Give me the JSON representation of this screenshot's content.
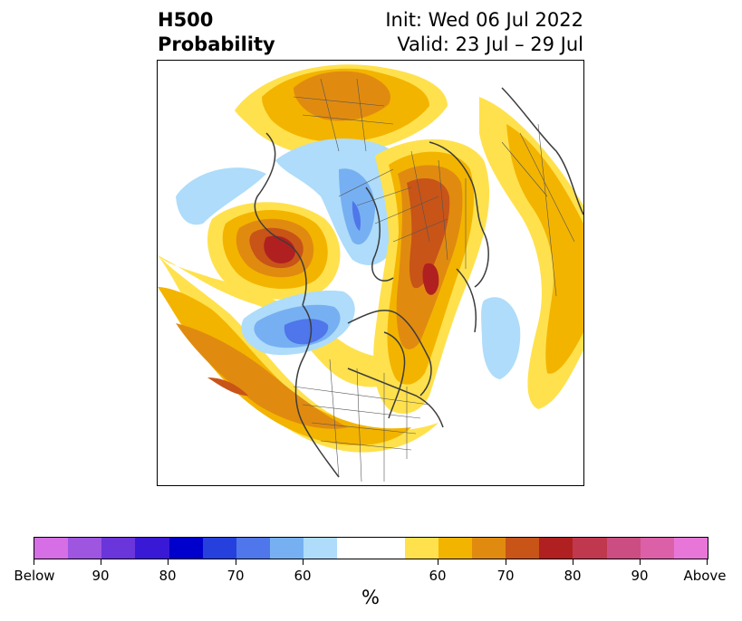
{
  "header": {
    "title_line1": "H500",
    "title_line2": "Probability",
    "init": "Init: Wed 06 Jul 2022",
    "valid": "Valid: 23 Jul – 29 Jul"
  },
  "map": {
    "projection": "north-polar-stereographic",
    "coastline_color": "#3c3c3c",
    "border_color": "#555555"
  },
  "colorbar": {
    "colors": [
      "#d66ee6",
      "#9e55e0",
      "#6a35da",
      "#3a19d6",
      "#0000cc",
      "#2640dd",
      "#4f76ea",
      "#76b0f2",
      "#aedcfa",
      "#ffffff",
      "#ffe14d",
      "#f3b400",
      "#e08b10",
      "#c85418",
      "#b02020",
      "#c0384e",
      "#cc4d82",
      "#dc60a8",
      "#e876d8"
    ],
    "tick_labels": [
      "Below",
      "90",
      "80",
      "70",
      "60",
      "60",
      "70",
      "80",
      "90",
      "Above"
    ],
    "unit": "%"
  }
}
